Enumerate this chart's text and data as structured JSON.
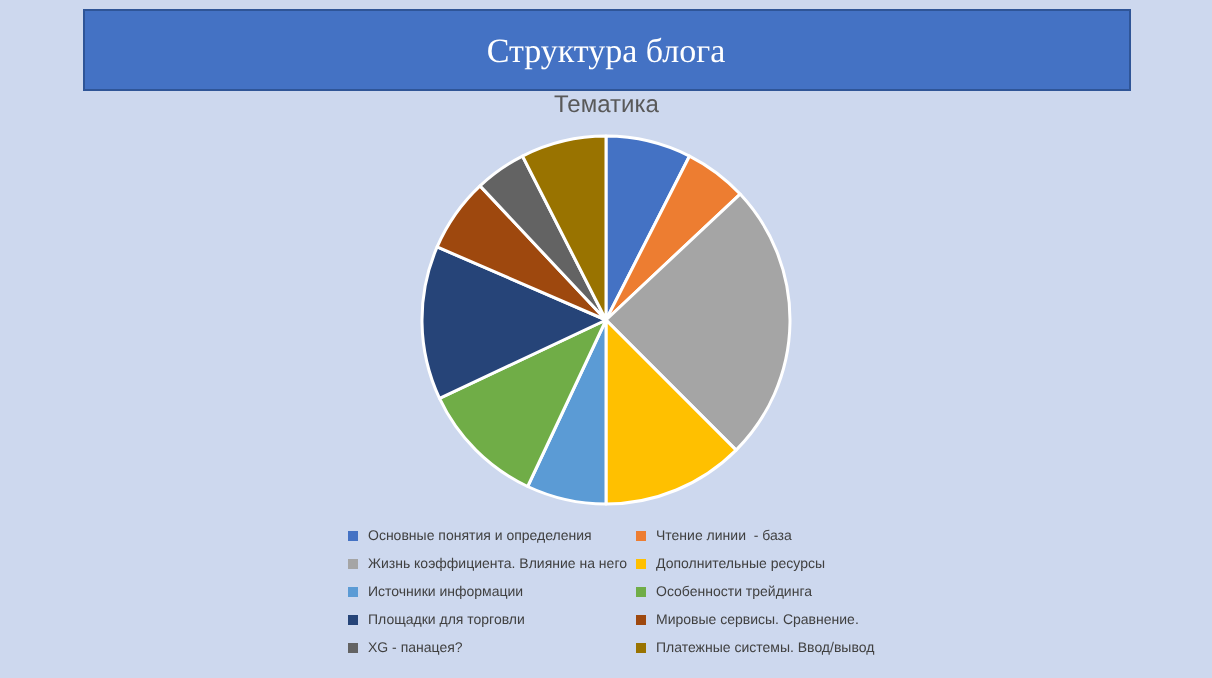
{
  "chart_data": {
    "type": "pie",
    "title": "Структура блога",
    "subtitle": "Тематика",
    "categories": [
      "Основные понятия и определения",
      "Чтение линии  - база",
      "Жизнь коэффициента. Влияние на него",
      "Дополнительные ресурсы",
      "Источники информации",
      "Особенности трейдинга",
      "Площадки для торговли",
      "Мировые сервисы. Сравнение.",
      "XG - панацея?",
      "Платежные системы. Ввод/вывод"
    ],
    "values": [
      7.5,
      5.5,
      24.5,
      12.5,
      7,
      11,
      13.5,
      6.5,
      4.5,
      7.5
    ],
    "colors": [
      "#4472c4",
      "#ed7d31",
      "#a5a5a5",
      "#ffc000",
      "#5b9bd5",
      "#70ad47",
      "#264478",
      "#9e480e",
      "#636363",
      "#997300"
    ],
    "legend": "bottom"
  }
}
